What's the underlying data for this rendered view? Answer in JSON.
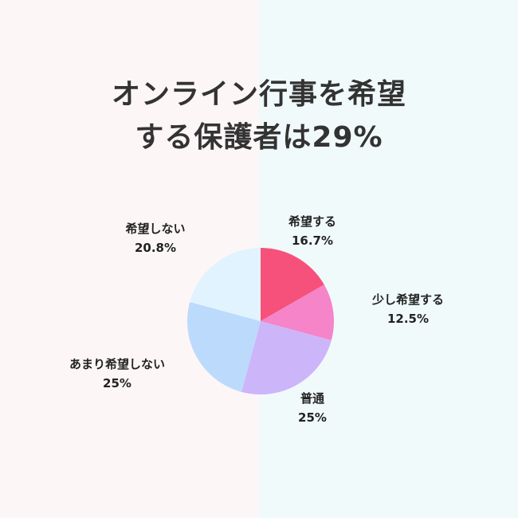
{
  "title_lines": [
    "オンライン行事を希望",
    "する保護者は29%"
  ],
  "chart_data": {
    "type": "pie",
    "title": "オンライン行事を希望する保護者は29%",
    "slices": [
      {
        "label": "希望する",
        "value": 16.7,
        "value_label": "16.7%",
        "color": "#f6517a"
      },
      {
        "label": "少し希望する",
        "value": 12.5,
        "value_label": "12.5%",
        "color": "#f584c9"
      },
      {
        "label": "普通",
        "value": 25,
        "value_label": "25%",
        "color": "#cdb5fa"
      },
      {
        "label": "あまり希望しない",
        "value": 25,
        "value_label": "25%",
        "color": "#bcdafc"
      },
      {
        "label": "希望しない",
        "value": 20.8,
        "value_label": "20.8%",
        "color": "#e0f3fe"
      }
    ],
    "start": "12 o'clock",
    "direction": "clockwise"
  },
  "background": {
    "left": "#fdf6f7",
    "right": "#f1fafa"
  }
}
